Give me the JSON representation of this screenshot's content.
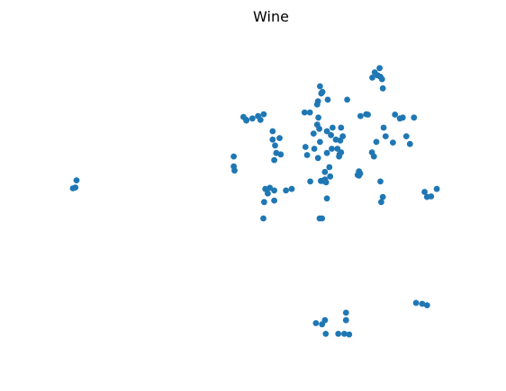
{
  "chart_data": {
    "type": "scatter",
    "title": "Wine",
    "xlabel": "",
    "ylabel": "",
    "grid": false,
    "axes_visible": false,
    "marker_color": "#1f77b4",
    "xlim": [
      0,
      100
    ],
    "ylim": [
      0,
      100
    ],
    "series": [
      {
        "points": [
          [
            2.0,
            54.8
          ],
          [
            1.1,
            52.1
          ],
          [
            1.7,
            52.4
          ],
          [
            40.8,
            62.8
          ],
          [
            40.8,
            59.5
          ],
          [
            41.0,
            58.1
          ],
          [
            43.2,
            76.1
          ],
          [
            43.9,
            74.9
          ],
          [
            43.9,
            75.1
          ],
          [
            46.8,
            76.4
          ],
          [
            47.4,
            75.1
          ],
          [
            48.2,
            77.0
          ],
          [
            45.4,
            75.6
          ],
          [
            50.4,
            71.3
          ],
          [
            50.4,
            68.5
          ],
          [
            52.1,
            69.0
          ],
          [
            51.0,
            66.5
          ],
          [
            51.3,
            64.0
          ],
          [
            50.8,
            61.6
          ],
          [
            52.4,
            63.5
          ],
          [
            48.6,
            51.9
          ],
          [
            49.2,
            50.4
          ],
          [
            49.7,
            52.3
          ],
          [
            50.8,
            51.4
          ],
          [
            48.3,
            47.5
          ],
          [
            50.8,
            48.0
          ],
          [
            48.1,
            42.0
          ],
          [
            53.7,
            51.4
          ],
          [
            55.1,
            51.9
          ],
          [
            62.1,
            86.4
          ],
          [
            62.4,
            84.0
          ],
          [
            62.7,
            84.5
          ],
          [
            64.0,
            81.9
          ],
          [
            61.6,
            81.4
          ],
          [
            61.4,
            80.3
          ],
          [
            58.3,
            77.6
          ],
          [
            59.6,
            77.6
          ],
          [
            61.7,
            75.9
          ],
          [
            61.9,
            72.1
          ],
          [
            61.4,
            73.5
          ],
          [
            63.8,
            71.3
          ],
          [
            65.2,
            72.5
          ],
          [
            67.3,
            72.5
          ],
          [
            60.5,
            70.5
          ],
          [
            60.7,
            65.4
          ],
          [
            62.1,
            67.7
          ],
          [
            58.5,
            66.0
          ],
          [
            58.9,
            63.3
          ],
          [
            63.8,
            64.0
          ],
          [
            64.8,
            70.0
          ],
          [
            65.0,
            65.4
          ],
          [
            66.0,
            68.5
          ],
          [
            67.1,
            68.2
          ],
          [
            67.7,
            69.6
          ],
          [
            66.4,
            65.4
          ],
          [
            67.3,
            64.2
          ],
          [
            66.8,
            62.8
          ],
          [
            66.9,
            63.5
          ],
          [
            61.6,
            62.3
          ],
          [
            64.4,
            59.2
          ],
          [
            63.3,
            57.6
          ],
          [
            64.6,
            56.1
          ],
          [
            63.3,
            55.1
          ],
          [
            59.7,
            54.4
          ],
          [
            62.3,
            54.6
          ],
          [
            63.0,
            54.6
          ],
          [
            63.6,
            54.1
          ],
          [
            63.8,
            48.7
          ],
          [
            62.0,
            42.0
          ],
          [
            62.6,
            42.0
          ],
          [
            68.8,
            81.9
          ],
          [
            75.0,
            89.3
          ],
          [
            72.1,
            76.4
          ],
          [
            73.5,
            77.0
          ],
          [
            73.9,
            76.9
          ],
          [
            75.6,
            91.1
          ],
          [
            76.3,
            90.1
          ],
          [
            77.0,
            89.6
          ],
          [
            76.8,
            92.5
          ],
          [
            77.4,
            88.8
          ],
          [
            77.6,
            85.7
          ],
          [
            80.6,
            76.9
          ],
          [
            81.8,
            75.6
          ],
          [
            82.5,
            75.9
          ],
          [
            85.3,
            75.9
          ],
          [
            77.8,
            72.5
          ],
          [
            78.3,
            69.6
          ],
          [
            76.0,
            67.7
          ],
          [
            74.9,
            64.2
          ],
          [
            75.4,
            62.8
          ],
          [
            80.1,
            67.5
          ],
          [
            83.4,
            69.6
          ],
          [
            84.3,
            67.0
          ],
          [
            71.7,
            57.8
          ],
          [
            72.0,
            57.1
          ],
          [
            71.4,
            56.6
          ],
          [
            71.7,
            56.4
          ],
          [
            77.0,
            54.4
          ],
          [
            77.6,
            49.2
          ],
          [
            77.2,
            47.5
          ],
          [
            87.9,
            50.9
          ],
          [
            88.5,
            49.2
          ],
          [
            89.5,
            49.4
          ],
          [
            90.9,
            51.9
          ],
          [
            85.8,
            13.6
          ],
          [
            87.3,
            13.3
          ],
          [
            88.5,
            12.8
          ],
          [
            68.5,
            10.3
          ],
          [
            68.5,
            7.8
          ],
          [
            63.3,
            7.8
          ],
          [
            61.1,
            6.8
          ],
          [
            62.6,
            6.4
          ],
          [
            63.5,
            3.2
          ],
          [
            66.6,
            3.2
          ],
          [
            68.1,
            3.2
          ],
          [
            69.3,
            3.0
          ]
        ]
      }
    ]
  }
}
